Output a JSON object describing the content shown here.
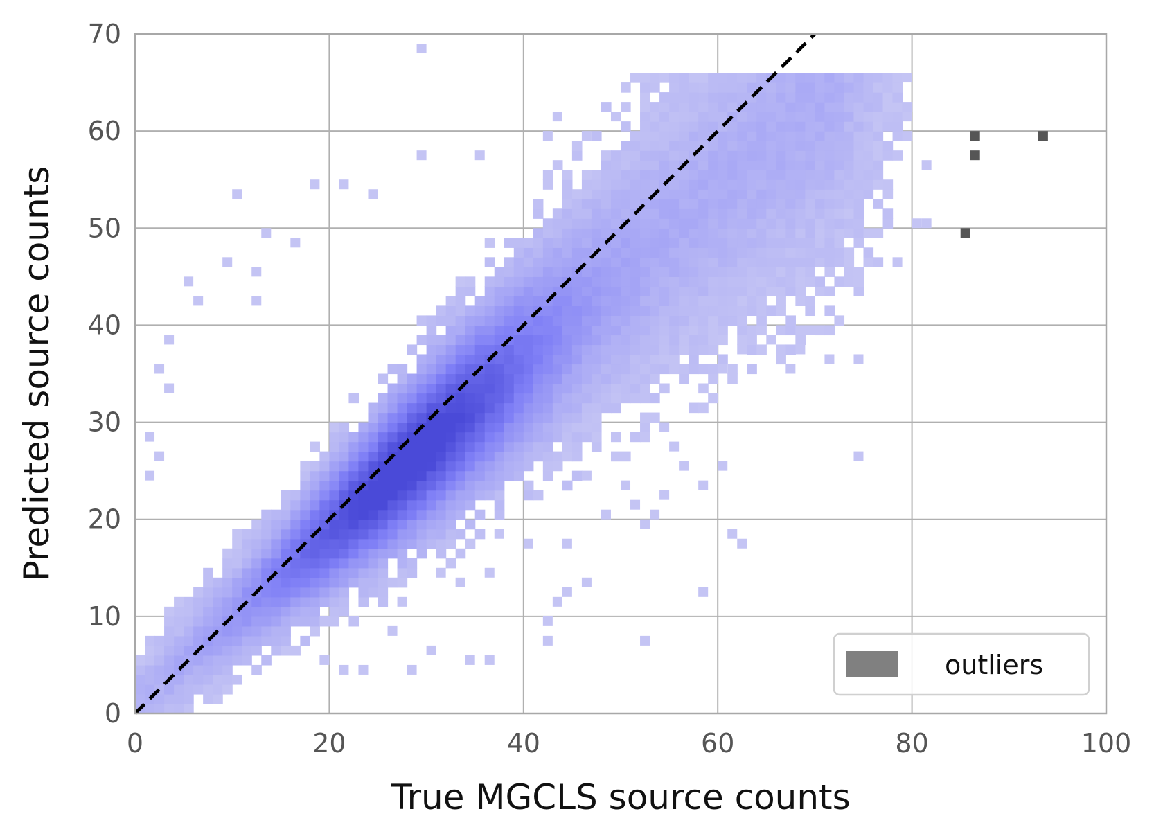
{
  "chart_data": {
    "type": "heatmap",
    "title": "",
    "xlabel": "True MGCLS source counts",
    "ylabel": "Predicted source counts",
    "xlim": [
      0,
      100
    ],
    "ylim": [
      0,
      70
    ],
    "xticks": [
      "0",
      "20",
      "40",
      "60",
      "80",
      "100"
    ],
    "yticks": [
      "0",
      "10",
      "20",
      "30",
      "40",
      "50",
      "60",
      "70"
    ],
    "grid": true,
    "bin_width": 1,
    "reference_line": {
      "style": "dashed",
      "color": "#000000",
      "from": [
        0,
        0
      ],
      "to": [
        70,
        70
      ]
    },
    "colors": {
      "low": "#c4c4f4",
      "mid": "#7f7ff6",
      "high": "#4a4ad8",
      "outlier": "#555555"
    },
    "density_model": {
      "bulk_slope": 0.88,
      "bulk_sigma_base": 2.5,
      "bulk_sigma_per_x": 0.12,
      "peak_x": 28
    },
    "sparse_cells": [
      [
        29,
        68
      ],
      [
        79,
        65
      ],
      [
        72,
        63
      ],
      [
        74,
        63
      ],
      [
        75,
        63
      ],
      [
        76,
        63
      ],
      [
        43,
        61
      ],
      [
        49,
        61
      ],
      [
        79,
        61
      ],
      [
        42,
        59
      ],
      [
        46,
        59
      ],
      [
        78,
        59
      ],
      [
        29,
        57
      ],
      [
        35,
        57
      ],
      [
        81,
        56
      ],
      [
        18,
        54
      ],
      [
        21,
        54
      ],
      [
        24,
        53
      ],
      [
        10,
        53
      ],
      [
        80,
        50
      ],
      [
        81,
        50
      ],
      [
        75,
        49
      ],
      [
        13,
        49
      ],
      [
        16,
        48
      ],
      [
        72,
        46
      ],
      [
        78,
        46
      ],
      [
        5,
        44
      ],
      [
        12,
        45
      ],
      [
        9,
        46
      ],
      [
        6,
        42
      ],
      [
        12,
        42
      ],
      [
        3,
        38
      ],
      [
        2,
        35
      ],
      [
        3,
        33
      ],
      [
        1,
        28
      ],
      [
        2,
        26
      ],
      [
        1,
        24
      ],
      [
        68,
        37
      ],
      [
        71,
        36
      ],
      [
        74,
        36
      ],
      [
        69,
        39
      ],
      [
        69,
        41
      ],
      [
        60,
        35
      ],
      [
        62,
        37
      ],
      [
        65,
        38
      ],
      [
        67,
        35
      ],
      [
        52,
        30
      ],
      [
        54,
        29
      ],
      [
        55,
        27
      ],
      [
        56,
        25
      ],
      [
        60,
        25
      ],
      [
        58,
        23
      ],
      [
        54,
        22
      ],
      [
        51,
        21
      ],
      [
        50,
        23
      ],
      [
        52,
        19
      ],
      [
        53,
        20
      ],
      [
        46,
        24
      ],
      [
        48,
        20
      ],
      [
        61,
        18
      ],
      [
        62,
        17
      ],
      [
        58,
        12
      ],
      [
        52,
        7
      ],
      [
        42,
        7
      ],
      [
        42,
        9
      ],
      [
        43,
        11
      ],
      [
        44,
        12
      ],
      [
        46,
        13
      ],
      [
        36,
        5
      ],
      [
        34,
        5
      ],
      [
        28,
        4
      ],
      [
        30,
        6
      ],
      [
        23,
        4
      ],
      [
        21,
        4
      ],
      [
        19,
        5
      ],
      [
        74,
        26
      ],
      [
        44,
        17
      ],
      [
        40,
        17
      ],
      [
        37,
        18
      ],
      [
        36,
        14
      ],
      [
        33,
        13
      ],
      [
        31,
        14
      ],
      [
        27,
        11
      ],
      [
        26,
        8
      ]
    ],
    "outliers": [
      [
        85,
        49
      ],
      [
        86,
        57
      ],
      [
        86,
        59
      ],
      [
        93,
        59
      ]
    ],
    "legend": {
      "entries": [
        "outliers"
      ],
      "placement": "lower-right"
    }
  }
}
